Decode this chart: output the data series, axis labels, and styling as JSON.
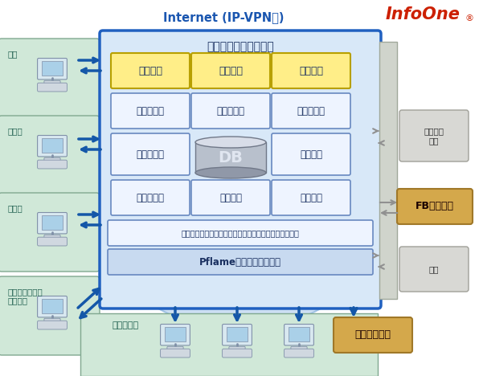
{
  "title": "Internet (IP-VPN等)",
  "system_title": "保険業務基幹システム",
  "yellow_boxes": [
    "生保商品",
    "損保商品",
    "第三分野"
  ],
  "row2_boxes": [
    "新契約引受",
    "保全・満期",
    "保険料収納"
  ],
  "row3_left": "保険金支払",
  "row3_right": "会計仕訳",
  "db_label": "DB",
  "row4_boxes": [
    "代理店管理",
    "商品管理",
    "月次統計"
  ],
  "common_func": "業務共通機能（マスタ管理・汎用検索・帳票管理など）",
  "pflame": "Pflame（システム幎盤）",
  "left_labels": [
    "支社",
    "営業店",
    "代理店",
    "コールセンター\n印刷会社"
  ],
  "bottom_label": "本社各部門",
  "kessai": "各種決済\n機関",
  "fb_system": "FBシステム",
  "saiho": "再保",
  "keiri": "経理システム",
  "arrow_blue": "#1457a8",
  "arrow_gray": "#909090",
  "ellipse_fill": "#c0d8f0",
  "ellipse_edge": "#90b8e0",
  "main_fill": "#d8e8f8",
  "main_edge": "#2060c0",
  "yellow_fill": "#ffee88",
  "yellow_edge": "#b8a000",
  "white_fill": "#eef4ff",
  "white_edge": "#6888c0",
  "pflame_fill": "#c8daf0",
  "common_fill": "#eef4ff",
  "fb_fill": "#d4a84b",
  "fb_edge": "#a07828",
  "keiri_fill": "#d4a84b",
  "keiri_edge": "#a07828",
  "gray_panel_fill": "#d0d4cc",
  "gray_panel_edge": "#a0a89a",
  "gray_box_fill": "#d8d8d4",
  "gray_box_edge": "#a0a098",
  "left_bg_fill": "#d0e8d8",
  "left_bg_edge": "#80a890",
  "bottom_bg_fill": "#d0e8d8",
  "bottom_bg_edge": "#80a890",
  "title_color": "#1a56b0",
  "text_dark": "#1a3060",
  "infoone_color": "#cc2000"
}
